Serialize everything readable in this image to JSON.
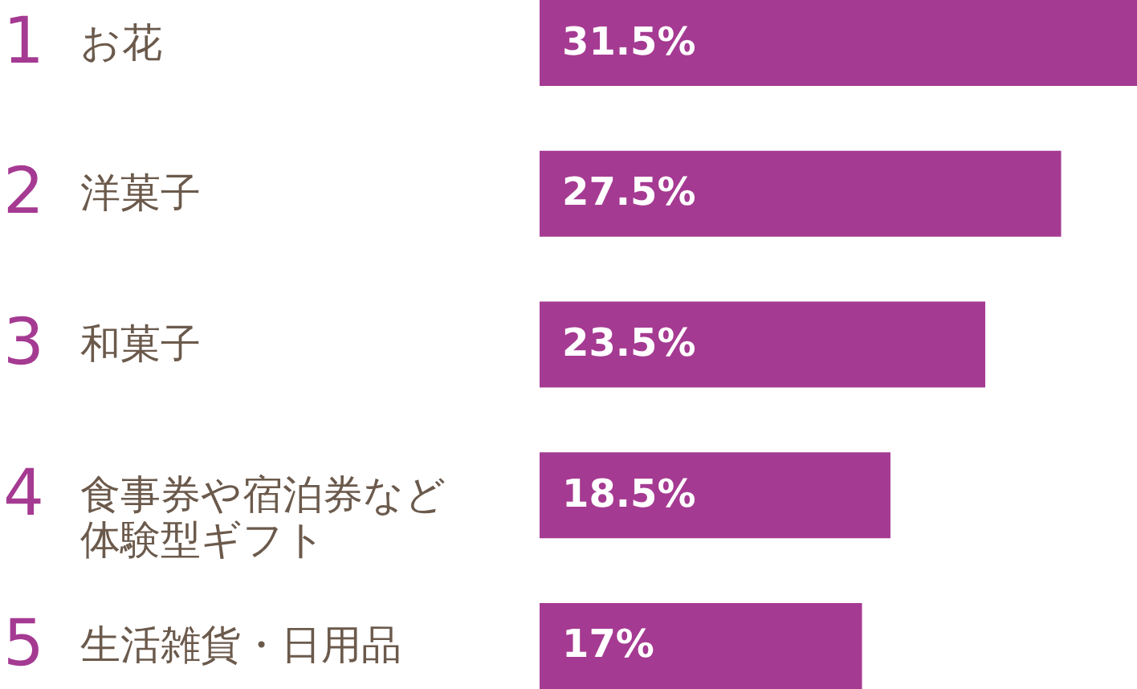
{
  "chart_data": {
    "type": "bar",
    "orientation": "horizontal",
    "categories": [
      "お花",
      "洋菓子",
      "和菓子",
      "食事券や宿泊券など体験型ギフト",
      "生活雑貨・日用品"
    ],
    "values": [
      31.5,
      27.5,
      23.5,
      18.5,
      17
    ],
    "value_labels": [
      "31.5%",
      "27.5%",
      "23.5%",
      "18.5%",
      "17%"
    ],
    "color": "#a53a92",
    "annotations": [
      "1",
      "2",
      "3",
      "4",
      "5"
    ]
  }
}
